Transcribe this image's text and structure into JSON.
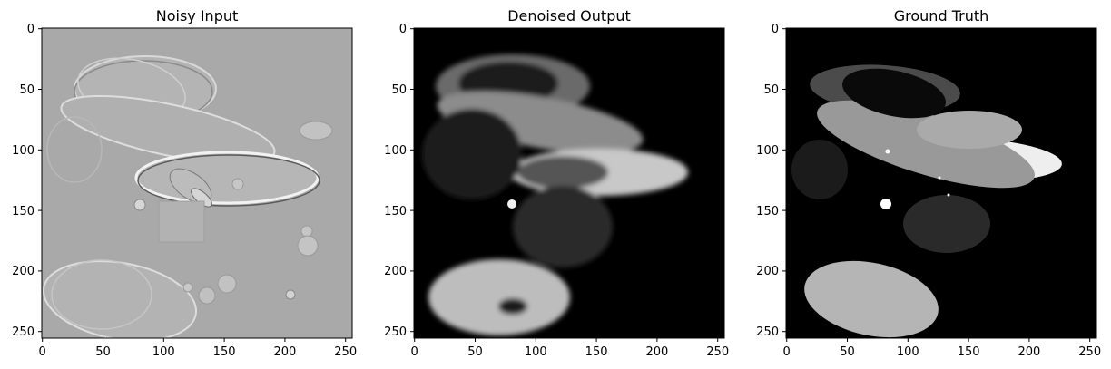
{
  "figure": {
    "panels": [
      {
        "key": "noisy",
        "title": "Noisy Input",
        "x_ticks": [
          "0",
          "50",
          "100",
          "150",
          "200",
          "250"
        ],
        "y_ticks": [
          "0",
          "50",
          "100",
          "150",
          "200",
          "250"
        ]
      },
      {
        "key": "denoised",
        "title": "Denoised Output",
        "x_ticks": [
          "0",
          "50",
          "100",
          "150",
          "200",
          "250"
        ],
        "y_ticks": [
          "0",
          "50",
          "100",
          "150",
          "200",
          "250"
        ]
      },
      {
        "key": "truth",
        "title": "Ground Truth",
        "x_ticks": [
          "0",
          "50",
          "100",
          "150",
          "200",
          "250"
        ],
        "y_ticks": [
          "0",
          "50",
          "100",
          "150",
          "200",
          "250"
        ]
      }
    ],
    "image_size": [
      256,
      256
    ],
    "colormap": "grayscale",
    "colors": {
      "noisy_background": "#a8a8a8",
      "dark_background": "#000000"
    }
  }
}
